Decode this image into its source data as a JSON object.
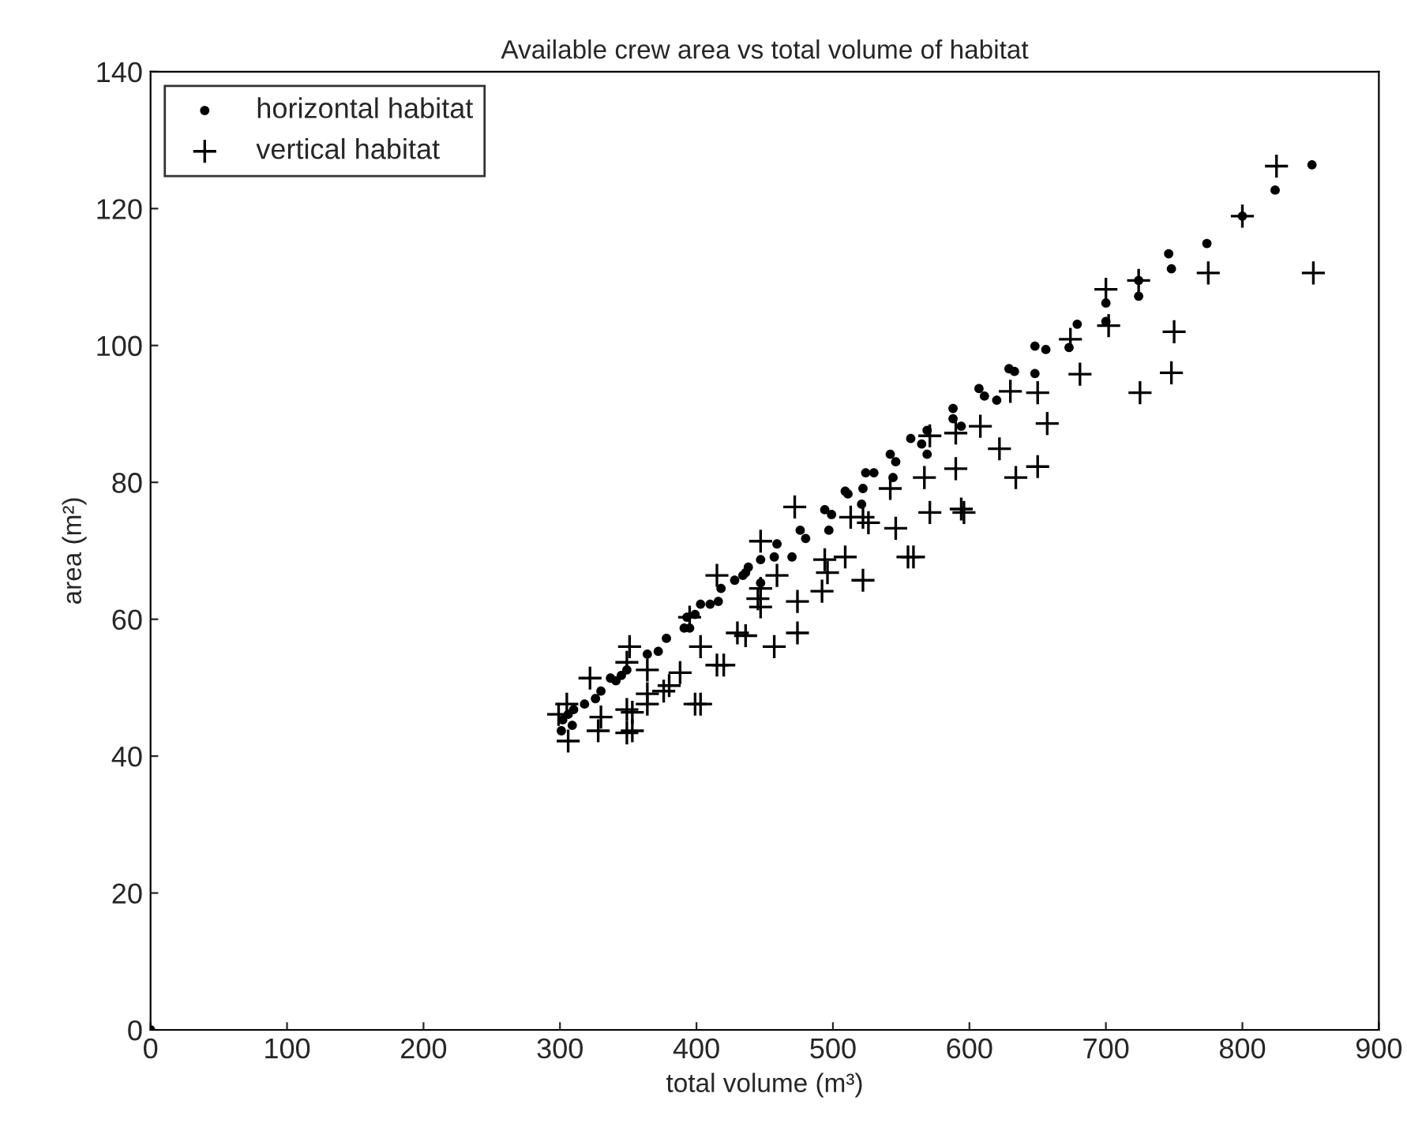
{
  "chart_data": {
    "type": "scatter",
    "title": "Available crew area vs total volume of habitat",
    "xlabel": "total volume (m³)",
    "ylabel": "area (m²)",
    "xlim": [
      0,
      900
    ],
    "xticks": [
      0,
      100,
      200,
      300,
      400,
      500,
      600,
      700,
      800,
      900
    ],
    "ylim": [
      0,
      140
    ],
    "yticks": [
      0,
      20,
      40,
      60,
      80,
      100,
      120,
      140
    ],
    "grid": false,
    "legend": "top left",
    "series": [
      {
        "name": "horizontal habitat",
        "color": "#000000",
        "marker": "circle",
        "x": [
          0,
          851,
          824,
          800,
          774,
          746,
          748,
          724,
          724,
          700,
          700,
          679,
          673,
          648,
          656,
          629,
          633,
          648,
          607,
          611,
          620,
          588,
          588,
          594,
          569,
          557,
          565,
          569,
          542,
          546,
          544,
          524,
          530,
          522,
          509,
          511,
          521,
          494,
          499,
          497,
          476,
          480,
          470,
          459,
          457,
          447,
          438,
          434,
          428,
          418,
          416,
          410,
          403,
          399,
          436,
          447,
          393,
          391,
          395,
          378,
          372,
          364,
          349,
          345,
          341,
          337,
          330,
          326,
          318,
          310,
          306,
          302,
          301,
          309
        ],
        "values": [
          0,
          126.4,
          122.7,
          118.9,
          114.9,
          113.4,
          111.2,
          107.2,
          109.5,
          106.2,
          103.5,
          103.1,
          99.7,
          99.9,
          99.4,
          96.6,
          96.2,
          95.9,
          93.7,
          92.6,
          92.0,
          90.8,
          89.3,
          88.2,
          87.6,
          86.4,
          85.6,
          84.1,
          84.1,
          83.0,
          80.7,
          81.4,
          81.4,
          79.1,
          78.7,
          78.3,
          76.8,
          76.0,
          75.3,
          73.0,
          73.0,
          71.8,
          69.1,
          71.0,
          69.1,
          68.7,
          67.6,
          66.4,
          65.7,
          64.5,
          62.6,
          62.2,
          62.2,
          60.7,
          66.8,
          65.3,
          60.3,
          58.7,
          58.7,
          57.2,
          55.3,
          54.9,
          52.6,
          51.8,
          51.0,
          51.4,
          49.5,
          48.4,
          47.6,
          46.8,
          46.1,
          45.3,
          43.7,
          44.5
        ]
      },
      {
        "name": "vertical habitat",
        "color": "#000000",
        "marker": "cross",
        "x": [
          825,
          852,
          800,
          775,
          750,
          748,
          725,
          724,
          700,
          702,
          674,
          681,
          650,
          630,
          657,
          650,
          634,
          622,
          608,
          590,
          590,
          594,
          571,
          567,
          571,
          596,
          542,
          546,
          555,
          559,
          522,
          526,
          513,
          522,
          509,
          494,
          496,
          492,
          472,
          459,
          447,
          474,
          447,
          457,
          474,
          415,
          430,
          436,
          415,
          420,
          403,
          447,
          445,
          395,
          388,
          399,
          403,
          380,
          376,
          364,
          364,
          364,
          351,
          349,
          349,
          353,
          330,
          353,
          349,
          328,
          322,
          306,
          299,
          305
        ],
        "values": [
          126.2,
          110.6,
          118.9,
          110.6,
          102.0,
          96.0,
          93.1,
          109.5,
          108.2,
          102.9,
          100.9,
          95.8,
          93.1,
          93.3,
          88.6,
          82.3,
          80.7,
          84.9,
          88.2,
          87.2,
          82.0,
          76.1,
          86.8,
          80.7,
          75.6,
          75.6,
          79.1,
          73.3,
          69.1,
          69.1,
          74.9,
          74.1,
          74.9,
          65.7,
          69.1,
          68.7,
          66.8,
          64.1,
          76.4,
          66.4,
          64.5,
          62.6,
          61.8,
          56.0,
          58.0,
          66.4,
          58.0,
          57.6,
          53.3,
          53.3,
          56.0,
          71.4,
          63.0,
          60.3,
          52.2,
          47.6,
          47.6,
          50.3,
          49.5,
          52.6,
          49.1,
          47.6,
          56.0,
          53.7,
          46.8,
          46.4,
          45.7,
          43.7,
          43.4,
          43.7,
          51.4,
          42.2,
          46.1,
          47.6
        ]
      }
    ]
  }
}
